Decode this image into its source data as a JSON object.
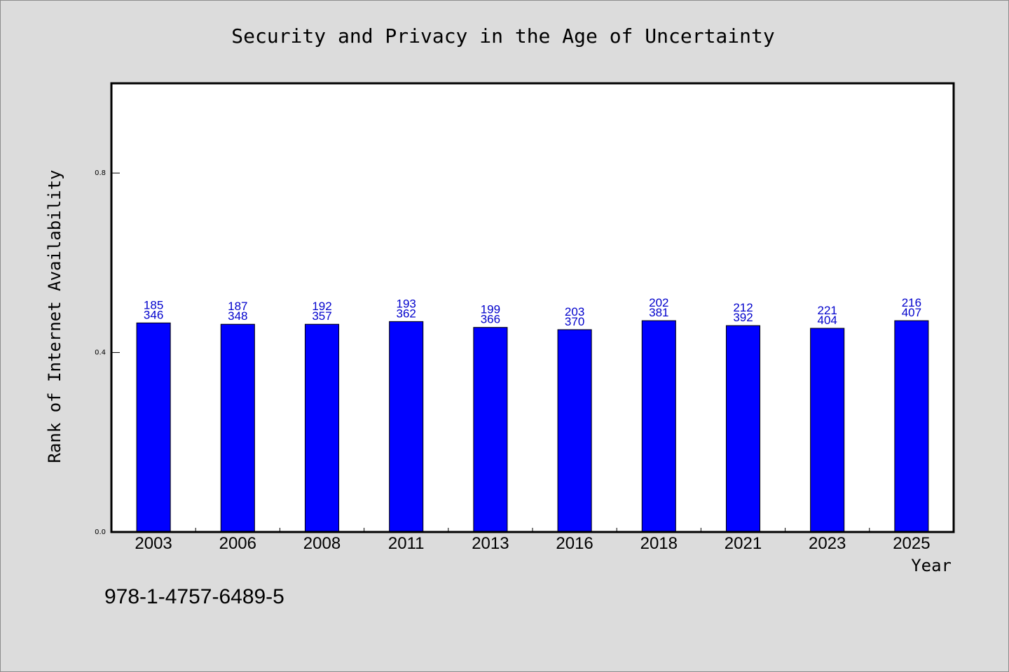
{
  "chart_data": {
    "type": "bar",
    "title": "Security and Privacy in the Age of Uncertainty",
    "xlabel": "Year",
    "ylabel": "Rank of Internet Availability",
    "categories": [
      "2003",
      "2006",
      "2008",
      "2011",
      "2013",
      "2016",
      "2018",
      "2021",
      "2023",
      "2025"
    ],
    "values": [
      0.466,
      0.463,
      0.463,
      0.469,
      0.456,
      0.451,
      0.471,
      0.46,
      0.454,
      0.471
    ],
    "labels_top": [
      "185",
      "187",
      "192",
      "193",
      "199",
      "203",
      "202",
      "212",
      "221",
      "216"
    ],
    "labels_bottom": [
      "346",
      "348",
      "357",
      "362",
      "366",
      "370",
      "381",
      "392",
      "404",
      "407"
    ],
    "ylim": [
      0,
      1.0
    ],
    "yticks": [
      0.0,
      0.4,
      0.8
    ],
    "ytick_labels": [
      "0.0",
      "0.4",
      "0.8"
    ],
    "grid": false,
    "bar_color": "#0000ff",
    "label_color": "#0000cc"
  },
  "footer": {
    "isbn": "978-1-4757-6489-5"
  }
}
